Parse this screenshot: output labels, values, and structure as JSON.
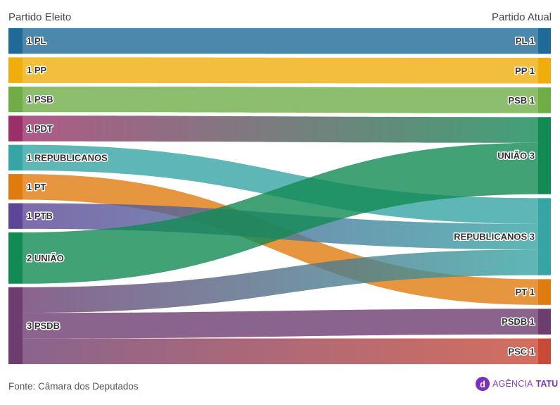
{
  "chart_data": {
    "type": "sankey",
    "left_title": "Partido Eleito",
    "right_title": "Partido Atual",
    "left_nodes": [
      {
        "name": "PL",
        "value": 1,
        "color": "#1f6a96"
      },
      {
        "name": "PP",
        "value": 1,
        "color": "#efae0c"
      },
      {
        "name": "PSB",
        "value": 1,
        "color": "#70ad47"
      },
      {
        "name": "PDT",
        "value": 1,
        "color": "#9b3068"
      },
      {
        "name": "REPUBLICANOS",
        "value": 1,
        "color": "#36a5a3"
      },
      {
        "name": "PT",
        "value": 1,
        "color": "#e07b0e"
      },
      {
        "name": "PTB",
        "value": 1,
        "color": "#5e4696"
      },
      {
        "name": "UNIÃO",
        "value": 2,
        "color": "#128a54"
      },
      {
        "name": "PSDB",
        "value": 3,
        "color": "#6d3d70"
      }
    ],
    "right_nodes": [
      {
        "name": "PL",
        "value": 1,
        "color": "#1f6a96"
      },
      {
        "name": "PP",
        "value": 1,
        "color": "#efae0c"
      },
      {
        "name": "PSB",
        "value": 1,
        "color": "#70ad47"
      },
      {
        "name": "UNIÃO",
        "value": 3,
        "color": "#128a54"
      },
      {
        "name": "REPUBLICANOS",
        "value": 3,
        "color": "#36a5a3"
      },
      {
        "name": "PT",
        "value": 1,
        "color": "#e07b0e"
      },
      {
        "name": "PSDB",
        "value": 1,
        "color": "#6d3d70"
      },
      {
        "name": "PSC",
        "value": 1,
        "color": "#c84a37"
      }
    ],
    "links": [
      {
        "from": "PL",
        "to": "PL",
        "value": 1
      },
      {
        "from": "PP",
        "to": "PP",
        "value": 1
      },
      {
        "from": "PSB",
        "to": "PSB",
        "value": 1
      },
      {
        "from": "PDT",
        "to": "UNIÃO",
        "value": 1
      },
      {
        "from": "REPUBLICANOS",
        "to": "REPUBLICANOS",
        "value": 1
      },
      {
        "from": "PT",
        "to": "PT",
        "value": 1
      },
      {
        "from": "PTB",
        "to": "REPUBLICANOS",
        "value": 1
      },
      {
        "from": "UNIÃO",
        "to": "UNIÃO",
        "value": 2
      },
      {
        "from": "PSDB",
        "to": "REPUBLICANOS",
        "value": 1
      },
      {
        "from": "PSDB",
        "to": "PSDB",
        "value": 1
      },
      {
        "from": "PSDB",
        "to": "PSC",
        "value": 1
      }
    ]
  },
  "footer": {
    "source": "Fonte: Câmara dos Deputados",
    "logo_text_light": "AGÊNCIA",
    "logo_text_bold": "TATU"
  }
}
